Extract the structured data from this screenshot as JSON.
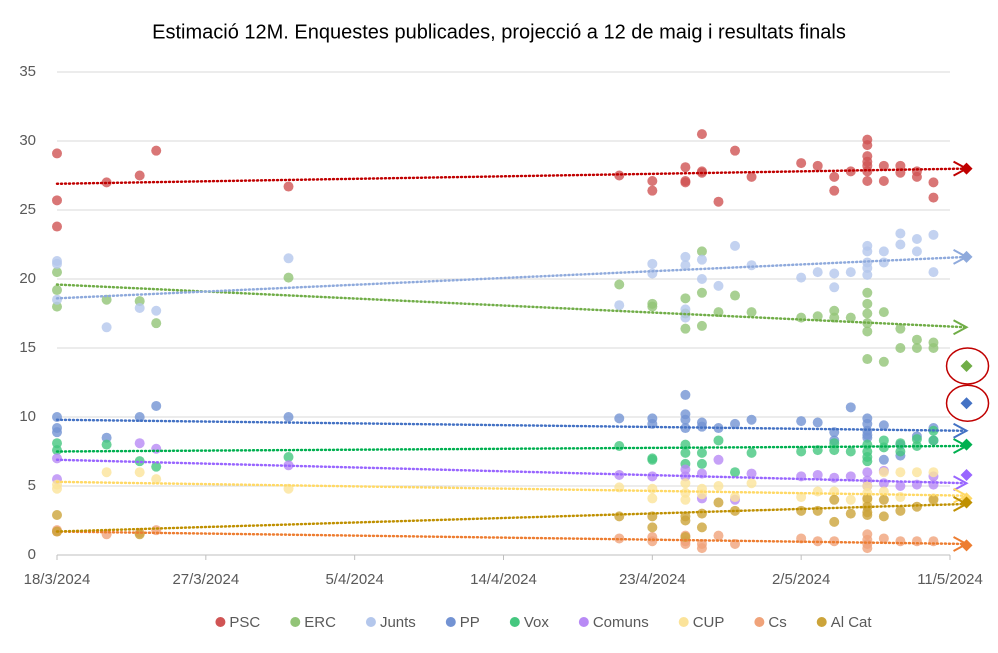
{
  "chart_data": {
    "type": "scatter",
    "title": "Estimació 12M. Enquestes publicades, projecció a 12 de maig i resultats finals",
    "xlim": [
      "18/3/2024",
      "11/5/2024"
    ],
    "xticks": [
      "18/3/2024",
      "27/3/2024",
      "5/4/2024",
      "14/4/2024",
      "23/4/2024",
      "2/5/2024",
      "11/5/2024"
    ],
    "ylim": [
      0,
      35
    ],
    "yticks": [
      0,
      5,
      10,
      15,
      20,
      25,
      30,
      35
    ],
    "grid": true,
    "legend": "bottom",
    "projection_date": "12/5/2024",
    "series": [
      {
        "name": "PSC",
        "color": "#c00000",
        "point_color": "#d05454",
        "x": [
          "18/3/2024",
          "18/3/2024",
          "18/3/2024",
          "21/3/2024",
          "23/3/2024",
          "24/3/2024",
          "1/4/2024",
          "21/4/2024",
          "23/4/2024",
          "23/4/2024",
          "25/4/2024",
          "25/4/2024",
          "25/4/2024",
          "26/4/2024",
          "26/4/2024",
          "26/4/2024",
          "27/4/2024",
          "28/4/2024",
          "29/4/2024",
          "2/5/2024",
          "3/5/2024",
          "4/5/2024",
          "4/5/2024",
          "5/5/2024",
          "6/5/2024",
          "6/5/2024",
          "6/5/2024",
          "6/5/2024",
          "6/5/2024",
          "6/5/2024",
          "6/5/2024",
          "7/5/2024",
          "7/5/2024",
          "8/5/2024",
          "8/5/2024",
          "9/5/2024",
          "9/5/2024",
          "10/5/2024",
          "10/5/2024"
        ],
        "values": [
          29.1,
          25.7,
          23.8,
          27,
          27.5,
          29.3,
          26.7,
          27.5,
          27.1,
          26.4,
          28.1,
          27,
          27.1,
          30.5,
          27.8,
          27.7,
          25.6,
          29.3,
          27.4,
          28.4,
          28.2,
          27.4,
          26.4,
          27.8,
          30.1,
          29.7,
          28.9,
          28.5,
          28.2,
          27.8,
          27.1,
          28.2,
          27.1,
          28.2,
          27.7,
          27.8,
          27.4,
          27,
          25.9
        ],
        "trend": [
          26.9,
          28
        ],
        "projection": 28,
        "result": 28
      },
      {
        "name": "ERC",
        "color": "#70ad47",
        "point_color": "#92c477",
        "x": [
          "18/3/2024",
          "18/3/2024",
          "18/3/2024",
          "21/3/2024",
          "23/3/2024",
          "24/3/2024",
          "1/4/2024",
          "21/4/2024",
          "23/4/2024",
          "23/4/2024",
          "25/4/2024",
          "25/4/2024",
          "25/4/2024",
          "26/4/2024",
          "26/4/2024",
          "26/4/2024",
          "27/4/2024",
          "28/4/2024",
          "29/4/2024",
          "2/5/2024",
          "3/5/2024",
          "4/5/2024",
          "4/5/2024",
          "5/5/2024",
          "6/5/2024",
          "6/5/2024",
          "6/5/2024",
          "6/5/2024",
          "6/5/2024",
          "6/5/2024",
          "7/5/2024",
          "7/5/2024",
          "8/5/2024",
          "8/5/2024",
          "9/5/2024",
          "9/5/2024",
          "10/5/2024",
          "10/5/2024"
        ],
        "values": [
          20.5,
          19.2,
          18,
          18.5,
          18.4,
          16.8,
          20.1,
          19.6,
          18.2,
          18,
          18.6,
          17.5,
          16.4,
          22,
          19,
          16.6,
          17.6,
          18.8,
          17.6,
          17.2,
          17.3,
          17.7,
          17.2,
          17.2,
          19,
          18.2,
          17.5,
          16.8,
          16.2,
          14.2,
          17.6,
          14,
          16.4,
          15,
          15.6,
          15,
          15.4,
          15
        ],
        "trend": [
          19.6,
          16.5
        ],
        "projection": 16.5,
        "result": 13.7,
        "highlight": true
      },
      {
        "name": "Junts",
        "color": "#8faadc",
        "point_color": "#b4c7ec",
        "x": [
          "18/3/2024",
          "18/3/2024",
          "18/3/2024",
          "21/3/2024",
          "23/3/2024",
          "24/3/2024",
          "1/4/2024",
          "21/4/2024",
          "23/4/2024",
          "23/4/2024",
          "25/4/2024",
          "25/4/2024",
          "25/4/2024",
          "25/4/2024",
          "26/4/2024",
          "26/4/2024",
          "27/4/2024",
          "28/4/2024",
          "29/4/2024",
          "2/5/2024",
          "3/5/2024",
          "4/5/2024",
          "4/5/2024",
          "5/5/2024",
          "6/5/2024",
          "6/5/2024",
          "6/5/2024",
          "6/5/2024",
          "6/5/2024",
          "7/5/2024",
          "7/5/2024",
          "8/5/2024",
          "8/5/2024",
          "9/5/2024",
          "9/5/2024",
          "10/5/2024",
          "10/5/2024"
        ],
        "values": [
          21.3,
          21.1,
          18.5,
          16.5,
          17.9,
          17.7,
          21.5,
          18.1,
          21.1,
          20.4,
          21.6,
          21,
          17.8,
          17.2,
          21.4,
          20,
          19.5,
          22.4,
          21,
          20.1,
          20.5,
          20.4,
          19.4,
          20.5,
          22.4,
          22,
          21.2,
          20.8,
          20.3,
          22,
          21.2,
          23.3,
          22.5,
          22.9,
          22,
          23.2,
          20.5
        ],
        "trend": [
          18.6,
          21.6
        ],
        "projection": 21.6,
        "result": 21.6
      },
      {
        "name": "PP",
        "color": "#4472c4",
        "point_color": "#7393d3",
        "x": [
          "18/3/2024",
          "18/3/2024",
          "18/3/2024",
          "21/3/2024",
          "23/3/2024",
          "24/3/2024",
          "1/4/2024",
          "21/4/2024",
          "23/4/2024",
          "23/4/2024",
          "25/4/2024",
          "25/4/2024",
          "25/4/2024",
          "25/4/2024",
          "26/4/2024",
          "26/4/2024",
          "27/4/2024",
          "28/4/2024",
          "29/4/2024",
          "2/5/2024",
          "3/5/2024",
          "4/5/2024",
          "4/5/2024",
          "5/5/2024",
          "6/5/2024",
          "6/5/2024",
          "6/5/2024",
          "6/5/2024",
          "6/5/2024",
          "7/5/2024",
          "7/5/2024",
          "8/5/2024",
          "8/5/2024",
          "9/5/2024",
          "10/5/2024",
          "10/5/2024"
        ],
        "values": [
          10,
          9.2,
          8.9,
          8.5,
          10,
          10.8,
          10,
          9.9,
          9.9,
          9.5,
          11.6,
          10.2,
          9.8,
          9.2,
          9.6,
          9.3,
          9.2,
          9.5,
          9.8,
          9.7,
          9.6,
          8.9,
          8.3,
          10.7,
          9.9,
          9.5,
          9,
          8.7,
          8.5,
          9.4,
          6.9,
          8,
          7.2,
          8.6,
          9.2,
          8.3
        ],
        "trend": [
          9.8,
          9
        ],
        "projection": 9,
        "result": 11,
        "highlight": true
      },
      {
        "name": "Vox",
        "color": "#00b050",
        "point_color": "#45c77f",
        "x": [
          "18/3/2024",
          "18/3/2024",
          "21/3/2024",
          "23/3/2024",
          "24/3/2024",
          "1/4/2024",
          "21/4/2024",
          "23/4/2024",
          "23/4/2024",
          "25/4/2024",
          "25/4/2024",
          "25/4/2024",
          "26/4/2024",
          "26/4/2024",
          "27/4/2024",
          "28/4/2024",
          "29/4/2024",
          "2/5/2024",
          "3/5/2024",
          "4/5/2024",
          "4/5/2024",
          "5/5/2024",
          "6/5/2024",
          "6/5/2024",
          "6/5/2024",
          "6/5/2024",
          "7/5/2024",
          "7/5/2024",
          "8/5/2024",
          "8/5/2024",
          "9/5/2024",
          "9/5/2024",
          "10/5/2024",
          "10/5/2024"
        ],
        "values": [
          8.1,
          7.6,
          8,
          6.8,
          6.4,
          7.1,
          7.9,
          7,
          6.9,
          8,
          7.4,
          6.6,
          7.4,
          6.6,
          8.3,
          6,
          7.4,
          7.5,
          7.6,
          8.1,
          7.6,
          7.5,
          8,
          7.5,
          7.1,
          6.8,
          8.3,
          7.8,
          8.1,
          7.5,
          8.4,
          7.9,
          9,
          8.3
        ],
        "trend": [
          7.5,
          7.9
        ],
        "projection": 7.9,
        "result": 8
      },
      {
        "name": "Comuns",
        "color": "#9966ff",
        "point_color": "#b88af5",
        "x": [
          "18/3/2024",
          "18/3/2024",
          "23/3/2024",
          "24/3/2024",
          "1/4/2024",
          "21/4/2024",
          "23/4/2024",
          "25/4/2024",
          "25/4/2024",
          "26/4/2024",
          "26/4/2024",
          "27/4/2024",
          "28/4/2024",
          "29/4/2024",
          "2/5/2024",
          "3/5/2024",
          "4/5/2024",
          "5/5/2024",
          "6/5/2024",
          "6/5/2024",
          "6/5/2024",
          "7/5/2024",
          "7/5/2024",
          "8/5/2024",
          "9/5/2024",
          "10/5/2024",
          "10/5/2024"
        ],
        "values": [
          7,
          5.5,
          8.1,
          7.7,
          6.5,
          5.8,
          5.7,
          6.2,
          5.7,
          5.9,
          4.1,
          6.9,
          4,
          5.9,
          5.7,
          5.8,
          5.6,
          5.7,
          6,
          5.4,
          5,
          6.1,
          5.2,
          5,
          5.1,
          5.7,
          5.1
        ],
        "trend": [
          6.9,
          5.2
        ],
        "projection": 5.2,
        "result": 5.8
      },
      {
        "name": "CUP",
        "color": "#ffd966",
        "point_color": "#fbe39a",
        "x": [
          "18/3/2024",
          "18/3/2024",
          "21/3/2024",
          "23/3/2024",
          "24/3/2024",
          "1/4/2024",
          "21/4/2024",
          "23/4/2024",
          "23/4/2024",
          "25/4/2024",
          "25/4/2024",
          "25/4/2024",
          "26/4/2024",
          "26/4/2024",
          "27/4/2024",
          "28/4/2024",
          "29/4/2024",
          "2/5/2024",
          "3/5/2024",
          "4/5/2024",
          "5/5/2024",
          "6/5/2024",
          "6/5/2024",
          "6/5/2024",
          "6/5/2024",
          "7/5/2024",
          "7/5/2024",
          "8/5/2024",
          "8/5/2024",
          "9/5/2024",
          "10/5/2024",
          "10/5/2024"
        ],
        "values": [
          5.1,
          4.8,
          6,
          6,
          5.5,
          4.8,
          4.9,
          4.1,
          4.8,
          5.2,
          4.5,
          4,
          4.8,
          4.4,
          5,
          4.2,
          5.2,
          4.2,
          4.6,
          4.6,
          4,
          5,
          4.5,
          4,
          3.8,
          6,
          4.6,
          6,
          4.2,
          6,
          6,
          4.1
        ],
        "trend": [
          5.3,
          4.3
        ],
        "projection": 4.3,
        "result": 4.1
      },
      {
        "name": "Cs",
        "color": "#ed7d31",
        "point_color": "#f0a37a",
        "x": [
          "18/3/2024",
          "18/3/2024",
          "21/3/2024",
          "23/3/2024",
          "24/3/2024",
          "21/4/2024",
          "23/4/2024",
          "23/4/2024",
          "25/4/2024",
          "25/4/2024",
          "25/4/2024",
          "26/4/2024",
          "26/4/2024",
          "27/4/2024",
          "28/4/2024",
          "2/5/2024",
          "3/5/2024",
          "4/5/2024",
          "6/5/2024",
          "6/5/2024",
          "6/5/2024",
          "6/5/2024",
          "7/5/2024",
          "8/5/2024",
          "9/5/2024",
          "10/5/2024"
        ],
        "values": [
          1.8,
          1.7,
          1.5,
          1.6,
          1.8,
          1.2,
          1.3,
          1,
          1.4,
          1,
          0.8,
          0.8,
          0.5,
          1.4,
          0.8,
          1.2,
          1,
          1,
          1.5,
          1.1,
          0.8,
          0.5,
          1.2,
          1,
          1,
          1
        ],
        "trend": [
          1.7,
          0.8
        ],
        "projection": 0.8,
        "result": 0.7
      },
      {
        "name": "Al Cat",
        "color": "#bf9000",
        "point_color": "#cca43a",
        "x": [
          "18/3/2024",
          "18/3/2024",
          "23/3/2024",
          "21/4/2024",
          "23/4/2024",
          "23/4/2024",
          "25/4/2024",
          "25/4/2024",
          "25/4/2024",
          "26/4/2024",
          "26/4/2024",
          "27/4/2024",
          "28/4/2024",
          "2/5/2024",
          "3/5/2024",
          "4/5/2024",
          "4/5/2024",
          "5/5/2024",
          "6/5/2024",
          "6/5/2024",
          "6/5/2024",
          "6/5/2024",
          "7/5/2024",
          "7/5/2024",
          "8/5/2024",
          "9/5/2024",
          "10/5/2024"
        ],
        "values": [
          2.9,
          1.7,
          1.5,
          2.8,
          2.8,
          2,
          2.8,
          2.5,
          1.3,
          3,
          2,
          3.8,
          3.2,
          3.2,
          3.2,
          4,
          2.4,
          3,
          4.1,
          3.5,
          3.1,
          2.9,
          4,
          2.8,
          3.2,
          3.5,
          4
        ],
        "trend": [
          1.7,
          3.7
        ],
        "projection": 3.7,
        "result": 3.8
      }
    ]
  }
}
